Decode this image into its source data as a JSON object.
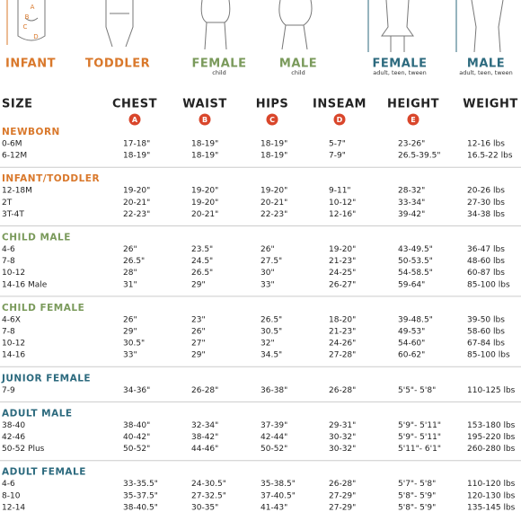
{
  "figures": [
    {
      "label": "INFANT"
    },
    {
      "label": "TODDLER"
    },
    {
      "label": "FEMALE",
      "sublabel": "child"
    },
    {
      "label": "MALE",
      "sublabel": "child"
    },
    {
      "label": "FEMALE",
      "sublabel": "adult, teen, tween"
    },
    {
      "label": "MALE",
      "sublabel": "adult, teen, tween"
    }
  ],
  "figure_letters": [
    "A",
    "B",
    "C",
    "D"
  ],
  "table": {
    "header": [
      "SIZE",
      "CHEST",
      "WAIST",
      "HIPS",
      "INSEAM",
      "HEIGHT",
      "WEIGHT"
    ],
    "letters": [
      "A",
      "B",
      "C",
      "D",
      "E"
    ],
    "sections": [
      {
        "title": "NEWBORN",
        "rows": [
          [
            "0-6M",
            "17-18\"",
            "18-19\"",
            "18-19\"",
            "5-7\"",
            "23-26\"",
            "12-16 lbs"
          ],
          [
            "6-12M",
            "18-19\"",
            "18-19\"",
            "18-19\"",
            "7-9\"",
            "26.5-39.5\"",
            "16.5-22 lbs"
          ]
        ]
      },
      {
        "title": "INFANT/TODDLER",
        "rows": [
          [
            "12-18M",
            "19-20\"",
            "19-20\"",
            "19-20\"",
            "9-11\"",
            "28-32\"",
            "20-26 lbs"
          ],
          [
            "2T",
            "20-21\"",
            "19-20\"",
            "20-21\"",
            "10-12\"",
            "33-34\"",
            "27-30 lbs"
          ],
          [
            "3T-4T",
            "22-23\"",
            "20-21\"",
            "22-23\"",
            "12-16\"",
            "39-42\"",
            "34-38 lbs"
          ]
        ]
      },
      {
        "title": "CHILD MALE",
        "rows": [
          [
            "4-6",
            "26\"",
            "23.5\"",
            "26\"",
            "19-20\"",
            "43-49.5\"",
            "36-47 lbs"
          ],
          [
            "7-8",
            "26.5\"",
            "24.5\"",
            "27.5\"",
            "21-23\"",
            "50-53.5\"",
            "48-60 lbs"
          ],
          [
            "10-12",
            "28\"",
            "26.5\"",
            "30\"",
            "24-25\"",
            "54-58.5\"",
            "60-87 lbs"
          ],
          [
            "14-16 Male",
            "31\"",
            "29\"",
            "33\"",
            "26-27\"",
            "59-64\"",
            "85-100 lbs"
          ]
        ]
      },
      {
        "title": "CHILD FEMALE",
        "rows": [
          [
            "4-6X",
            "26\"",
            "23\"",
            "26.5\"",
            "18-20\"",
            "39-48.5\"",
            "39-50 lbs"
          ],
          [
            "7-8",
            "29\"",
            "26\"",
            "30.5\"",
            "21-23\"",
            "49-53\"",
            "58-60 lbs"
          ],
          [
            "10-12",
            "30.5\"",
            "27\"",
            "32\"",
            "24-26\"",
            "54-60\"",
            "67-84 lbs"
          ],
          [
            "14-16",
            "33\"",
            "29\"",
            "34.5\"",
            "27-28\"",
            "60-62\"",
            "85-100 lbs"
          ]
        ]
      },
      {
        "title": "JUNIOR FEMALE",
        "rows": [
          [
            "7-9",
            "34-36\"",
            "26-28\"",
            "36-38\"",
            "26-28\"",
            "5'5\"- 5'8\"",
            "110-125 lbs"
          ]
        ]
      },
      {
        "title": "ADULT MALE",
        "rows": [
          [
            "38-40",
            "38-40\"",
            "32-34\"",
            "37-39\"",
            "29-31\"",
            "5'9\"- 5'11\"",
            "153-180 lbs"
          ],
          [
            "42-46",
            "40-42\"",
            "38-42\"",
            "42-44\"",
            "30-32\"",
            "5'9\"- 5'11\"",
            "195-220 lbs"
          ],
          [
            "50-52 Plus",
            "50-52\"",
            "44-46\"",
            "50-52\"",
            "30-32\"",
            "5'11\"- 6'1\"",
            "260-280 lbs"
          ]
        ]
      },
      {
        "title": "ADULT FEMALE",
        "rows": [
          [
            "4-6",
            "33-35.5\"",
            "24-30.5\"",
            "35-38.5\"",
            "26-28\"",
            "5'7\"- 5'8\"",
            "110-120 lbs"
          ],
          [
            "8-10",
            "35-37.5\"",
            "27-32.5\"",
            "37-40.5\"",
            "27-29\"",
            "5'8\"- 5'9\"",
            "120-130 lbs"
          ],
          [
            "12-14",
            "38-40.5\"",
            "30-35\"",
            "41-43\"",
            "27-29\"",
            "5'8\"- 5'9\"",
            "135-145 lbs"
          ]
        ]
      }
    ]
  }
}
